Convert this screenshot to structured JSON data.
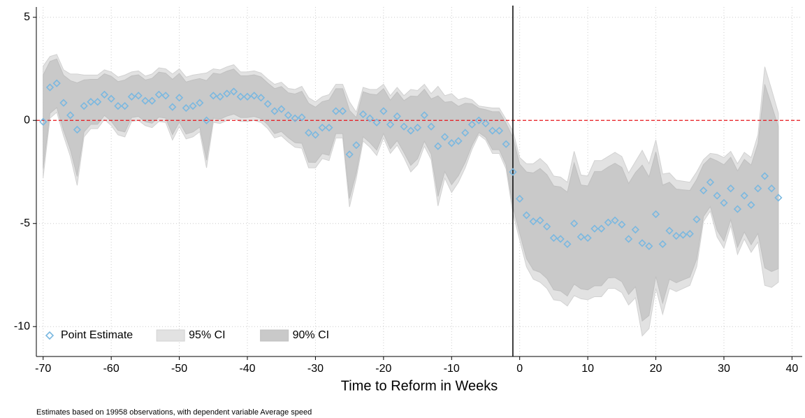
{
  "chart_data": {
    "type": "event-study",
    "xlabel": "Time to Reform in Weeks",
    "note": "Estimates based on 19958 observations, with dependent variable Average speed",
    "xlim": [
      -71,
      41.5
    ],
    "ylim": [
      -11.45,
      5.5
    ],
    "xticks": [
      -70,
      -60,
      -50,
      -40,
      -30,
      -20,
      -10,
      0,
      10,
      20,
      30,
      40
    ],
    "yticks": [
      5,
      0,
      -5,
      -10
    ],
    "grid": true,
    "hline": 0,
    "vline": -1,
    "legend": "lower left",
    "x": [
      -70,
      -69,
      -68,
      -67,
      -66,
      -65,
      -64,
      -63,
      -62,
      -61,
      -60,
      -59,
      -58,
      -57,
      -56,
      -55,
      -54,
      -53,
      -52,
      -51,
      -50,
      -49,
      -48,
      -47,
      -46,
      -45,
      -44,
      -43,
      -42,
      -41,
      -40,
      -39,
      -38,
      -37,
      -36,
      -35,
      -34,
      -33,
      -32,
      -31,
      -30,
      -29,
      -28,
      -27,
      -26,
      -25,
      -24,
      -23,
      -22,
      -21,
      -20,
      -19,
      -18,
      -17,
      -16,
      -15,
      -14,
      -13,
      -12,
      -11,
      -10,
      -9,
      -8,
      -7,
      -6,
      -5,
      -4,
      -3,
      -2,
      -1,
      0,
      1,
      2,
      3,
      4,
      5,
      6,
      7,
      8,
      9,
      10,
      11,
      12,
      13,
      14,
      15,
      16,
      17,
      18,
      19,
      20,
      21,
      22,
      23,
      24,
      25,
      26,
      27,
      28,
      29,
      30,
      31,
      32,
      33,
      34,
      35,
      36,
      37,
      38
    ],
    "series": [
      {
        "name": "Point Estimate",
        "color": "#7ab8e0",
        "values": [
          -0.07,
          1.6,
          1.8,
          0.85,
          0.25,
          -0.45,
          0.7,
          0.9,
          0.9,
          1.25,
          1.05,
          0.7,
          0.7,
          1.15,
          1.2,
          0.95,
          0.95,
          1.25,
          1.2,
          0.65,
          1.1,
          0.6,
          0.7,
          0.85,
          0,
          1.2,
          1.15,
          1.3,
          1.4,
          1.15,
          1.15,
          1.2,
          1.1,
          0.8,
          0.45,
          0.55,
          0.25,
          0.1,
          0.15,
          -0.6,
          -0.7,
          -0.35,
          -0.35,
          0.45,
          0.45,
          -1.65,
          -1.2,
          0.3,
          0.1,
          -0.1,
          0.45,
          -0.2,
          0.2,
          -0.3,
          -0.5,
          -0.35,
          0.25,
          -0.3,
          -1.25,
          -0.8,
          -1.1,
          -1.0,
          -0.6,
          -0.2,
          0,
          -0.15,
          -0.5,
          -0.5,
          -1.15,
          -2.5,
          -3.8,
          -4.6,
          -4.9,
          -4.85,
          -5.15,
          -5.7,
          -5.75,
          -6.0,
          -5.0,
          -5.65,
          -5.7,
          -5.25,
          -5.25,
          -4.95,
          -4.85,
          -5.05,
          -5.75,
          -5.3,
          -5.95,
          -6.1,
          -4.55,
          -6.0,
          -5.35,
          -5.6,
          -5.55,
          -5.5,
          -4.8,
          -3.4,
          -3.0,
          -3.65,
          -4.0,
          -3.3,
          -4.3,
          -3.65,
          -4.1,
          -3.3,
          -2.7,
          -3.3,
          -3.75
        ]
      },
      {
        "name": "95% CI",
        "color": "#e2e2e2",
        "upper": [
          2.63,
          3.1,
          3.2,
          2.45,
          2.25,
          2.25,
          2.2,
          2.2,
          2.2,
          2.45,
          2.35,
          2.1,
          2.2,
          2.35,
          2.4,
          2.15,
          2.25,
          2.55,
          2.5,
          2.25,
          2.5,
          2.1,
          2.2,
          2.25,
          2.3,
          2.5,
          2.45,
          2.6,
          2.7,
          2.35,
          2.35,
          2.4,
          2.3,
          2,
          1.75,
          1.85,
          1.55,
          1.5,
          1.65,
          1.1,
          0.9,
          1.15,
          1.25,
          1.75,
          1.75,
          0.9,
          0.4,
          1.6,
          1.5,
          1.5,
          1.75,
          1.2,
          1.6,
          1.2,
          1.5,
          1.45,
          1.75,
          1.3,
          1.65,
          1.2,
          1.3,
          1,
          1.1,
          1,
          0.7,
          0.65,
          0.6,
          0.6,
          0.05,
          -0.5,
          -1.8,
          -2.1,
          -2.1,
          -1.85,
          -2.15,
          -2.7,
          -2.75,
          -3,
          -1.5,
          -2.65,
          -2.7,
          -1.95,
          -1.95,
          -1.75,
          -1.55,
          -1.75,
          -2.55,
          -2,
          -1.45,
          -2.1,
          -0.95,
          -2.6,
          -2.55,
          -2.9,
          -2.95,
          -3,
          -2.5,
          -1.9,
          -1.6,
          -1.65,
          -1.8,
          -1.5,
          -2.1,
          -1.55,
          -1.8,
          -0.7,
          2.6,
          1.5,
          0.35
        ],
        "lower": [
          -2.77,
          0.1,
          0.4,
          -0.75,
          -1.75,
          -3.15,
          -0.8,
          -0.4,
          -0.4,
          0.05,
          -0.25,
          -0.7,
          -0.8,
          -0.05,
          0,
          -0.25,
          -0.35,
          -0.05,
          -0.1,
          -0.95,
          -0.3,
          -0.9,
          -0.8,
          -0.55,
          -2.3,
          -0.1,
          -0.15,
          0,
          0.1,
          -0.05,
          -0.05,
          0,
          -0.1,
          -0.4,
          -0.85,
          -0.75,
          -1.05,
          -1.3,
          -1.35,
          -2.3,
          -2.3,
          -1.85,
          -1.95,
          -0.85,
          -0.85,
          -4.2,
          -2.8,
          -1,
          -1.3,
          -1.7,
          -0.85,
          -1.6,
          -1.2,
          -1.8,
          -2.5,
          -2.15,
          -1.25,
          -1.9,
          -4.15,
          -2.8,
          -3.5,
          -3,
          -2.3,
          -1.4,
          -0.7,
          -0.95,
          -1.6,
          -1.6,
          -2.35,
          -4.5,
          -5.8,
          -7.1,
          -7.7,
          -7.85,
          -8.15,
          -8.7,
          -8.75,
          -9,
          -8.5,
          -8.65,
          -8.7,
          -8.55,
          -8.55,
          -8.15,
          -8.15,
          -8.35,
          -8.95,
          -8.6,
          -10.45,
          -10.1,
          -8.15,
          -9.4,
          -8.15,
          -8.3,
          -8.15,
          -8,
          -7.1,
          -4.9,
          -4.4,
          -5.65,
          -6.2,
          -5.1,
          -6.5,
          -5.75,
          -6.4,
          -5.9,
          -8,
          -8.1,
          -7.85
        ]
      },
      {
        "name": "90% CI",
        "color": "#c9c9c9",
        "upper": [
          2.2,
          2.86,
          2.98,
          2.19,
          1.93,
          1.82,
          1.96,
          1.99,
          1.99,
          2.26,
          2.14,
          1.88,
          1.96,
          2.16,
          2.21,
          1.96,
          2.04,
          2.34,
          2.29,
          1.99,
          2.28,
          1.86,
          1.96,
          2.03,
          1.93,
          2.29,
          2.24,
          2.39,
          2.49,
          2.16,
          2.16,
          2.21,
          2.11,
          1.81,
          1.54,
          1.64,
          1.34,
          1.28,
          1.41,
          0.83,
          0.64,
          0.91,
          0.99,
          1.54,
          1.54,
          0.49,
          0.14,
          1.39,
          1.28,
          1.24,
          1.54,
          0.98,
          1.38,
          0.96,
          1.18,
          1.16,
          1.51,
          1.04,
          1.19,
          0.88,
          0.92,
          0.68,
          0.83,
          0.81,
          0.59,
          0.52,
          0.42,
          0.42,
          -0.14,
          -0.82,
          -2.12,
          -2.5,
          -2.55,
          -2.33,
          -2.63,
          -3.18,
          -3.23,
          -3.48,
          -2.06,
          -3.13,
          -3.18,
          -2.48,
          -2.48,
          -2.26,
          -2.08,
          -2.28,
          -3.06,
          -2.53,
          -2.17,
          -2.74,
          -1.53,
          -3.14,
          -3,
          -3.33,
          -3.37,
          -3.4,
          -2.87,
          -2.14,
          -1.82,
          -1.97,
          -2.15,
          -1.79,
          -2.45,
          -1.89,
          -2.17,
          -1.12,
          1.75,
          0.73,
          -0.31
        ],
        "lower": [
          -2.34,
          0.34,
          0.62,
          -0.49,
          -1.43,
          -2.72,
          -0.56,
          -0.19,
          -0.19,
          0.24,
          -0.04,
          -0.48,
          -0.56,
          0.14,
          0.19,
          -0.06,
          -0.14,
          0.16,
          0.11,
          -0.69,
          -0.08,
          -0.66,
          -0.56,
          -0.33,
          -1.93,
          0.11,
          0.06,
          0.21,
          0.31,
          0.14,
          0.14,
          0.19,
          0.09,
          -0.21,
          -0.64,
          -0.54,
          -0.84,
          -1.08,
          -1.11,
          -2.03,
          -2.04,
          -1.61,
          -1.69,
          -0.64,
          -0.64,
          -3.79,
          -2.54,
          -0.79,
          -1.08,
          -1.44,
          -0.64,
          -1.38,
          -0.98,
          -1.56,
          -2.18,
          -1.86,
          -1.01,
          -1.64,
          -3.69,
          -2.48,
          -3.12,
          -2.68,
          -2.03,
          -1.21,
          -0.59,
          -0.82,
          -1.42,
          -1.42,
          -2.16,
          -4.18,
          -5.48,
          -6.7,
          -7.25,
          -7.37,
          -7.67,
          -8.22,
          -8.27,
          -8.52,
          -7.94,
          -8.17,
          -8.22,
          -8.02,
          -8.02,
          -7.64,
          -7.62,
          -7.82,
          -8.44,
          -8.07,
          -9.73,
          -9.46,
          -7.57,
          -8.86,
          -7.7,
          -7.87,
          -7.73,
          -7.6,
          -6.73,
          -4.66,
          -4.18,
          -5.33,
          -5.85,
          -4.81,
          -6.15,
          -5.41,
          -6.03,
          -5.48,
          -7.15,
          -7.33,
          -7.19
        ]
      }
    ]
  }
}
